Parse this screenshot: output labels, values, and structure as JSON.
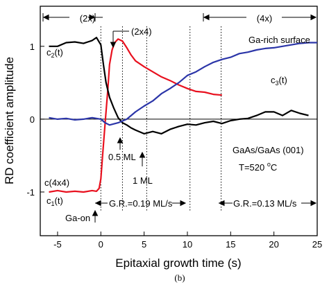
{
  "chart_data": {
    "type": "line",
    "title": "",
    "xlabel": "Epitaxial growth time (s)",
    "ylabel": "RD coefficient amplitude",
    "caption": "(b)",
    "xlim": [
      -7,
      25
    ],
    "ylim": [
      -1.6,
      1.55
    ],
    "xticks": [
      -5,
      0,
      5,
      10,
      15,
      20,
      25
    ],
    "yticks": [
      -1,
      0,
      1
    ],
    "series": [
      {
        "name": "c1(t)",
        "color": "#e8101e",
        "x": [
          -6,
          -5,
          -4,
          -3,
          -2,
          -1,
          -0.5,
          -0.2,
          0,
          0.2,
          0.5,
          0.8,
          1.0,
          1.3,
          1.6,
          2.0,
          2.5,
          3.0,
          3.5,
          4.0,
          5.0,
          6.0,
          7.0,
          8.0,
          9.0,
          10.0,
          11.0,
          12.0,
          13.0,
          14.0
        ],
        "y": [
          -1.0,
          -0.98,
          -1.0,
          -0.99,
          -1.0,
          -0.98,
          -0.99,
          -0.95,
          -0.82,
          -0.5,
          -0.05,
          0.4,
          0.75,
          0.95,
          1.05,
          1.1,
          1.07,
          0.98,
          0.88,
          0.8,
          0.72,
          0.65,
          0.58,
          0.53,
          0.47,
          0.42,
          0.38,
          0.37,
          0.34,
          0.33
        ]
      },
      {
        "name": "c2(t)",
        "color": "#000000",
        "x": [
          -6,
          -5,
          -4,
          -3,
          -2,
          -1,
          -0.5,
          0,
          0.3,
          0.6,
          1.0,
          1.5,
          2.0,
          2.5,
          3.0,
          3.5,
          4.0,
          5.0,
          6.0,
          7.0,
          8.0,
          9.0,
          10.0,
          11.0,
          12.0,
          13.0,
          14.0,
          15.0,
          16.0,
          17.0,
          18.0,
          19.0,
          20.0,
          21.0,
          22.0,
          23.0,
          24.0
        ],
        "y": [
          1.0,
          1.0,
          1.05,
          1.06,
          1.04,
          1.08,
          1.12,
          1.02,
          0.75,
          0.5,
          0.3,
          0.15,
          0.02,
          -0.05,
          -0.08,
          -0.12,
          -0.15,
          -0.2,
          -0.17,
          -0.2,
          -0.14,
          -0.1,
          -0.07,
          -0.08,
          -0.05,
          -0.03,
          -0.06,
          -0.02,
          0.0,
          0.01,
          0.05,
          0.1,
          0.1,
          0.05,
          0.12,
          0.08,
          0.05
        ]
      },
      {
        "name": "c3(t)",
        "color": "#2b35a8",
        "x": [
          -6,
          -5,
          -4,
          -3,
          -2,
          -1,
          0,
          0.5,
          1.0,
          2.0,
          3.0,
          4.0,
          5.0,
          6.0,
          7.0,
          8.0,
          9.0,
          10.0,
          11.0,
          12.0,
          13.0,
          14.0,
          15.0,
          16.0,
          17.0,
          18.0,
          19.0,
          20.0,
          21.0,
          22.0,
          23.0,
          24.0,
          25.0
        ],
        "y": [
          0.02,
          0.0,
          0.01,
          -0.01,
          0.0,
          0.02,
          0.0,
          -0.05,
          -0.08,
          -0.05,
          0.0,
          0.1,
          0.18,
          0.25,
          0.35,
          0.42,
          0.5,
          0.6,
          0.65,
          0.72,
          0.78,
          0.82,
          0.85,
          0.9,
          0.92,
          0.95,
          0.97,
          0.98,
          1.0,
          1.02,
          1.04,
          1.05,
          1.05
        ]
      }
    ],
    "curve_labels": [
      {
        "series": "c2(t)",
        "main": "c",
        "sub": "2",
        "tail": "(t)"
      },
      {
        "series": "c1(t)",
        "main": "c",
        "sub": "1",
        "tail": "(t)"
      },
      {
        "series": "c3(t)",
        "main": "c",
        "sub": "3",
        "tail": "(t)"
      }
    ],
    "vlines": [
      0,
      2.5,
      5.3,
      10.3,
      13.9
    ],
    "annotations": {
      "phase_2x": "(2x)",
      "phase_2x4": "(2x4)",
      "phase_4x": "(4x)",
      "ga_rich": "Ga-rich surface",
      "c4x4": "c(4x4)",
      "half_ml": "0.5 ML",
      "one_ml": "1 ML",
      "ga_on": "Ga-on",
      "gr1": "G.R.=0.19 ML/s",
      "gr2": "G.R.=0.13 ML/s",
      "sample": "GaAs/GaAs (001)",
      "temp_main": "T=520 ",
      "temp_sup": "o",
      "temp_unit": "C"
    }
  }
}
